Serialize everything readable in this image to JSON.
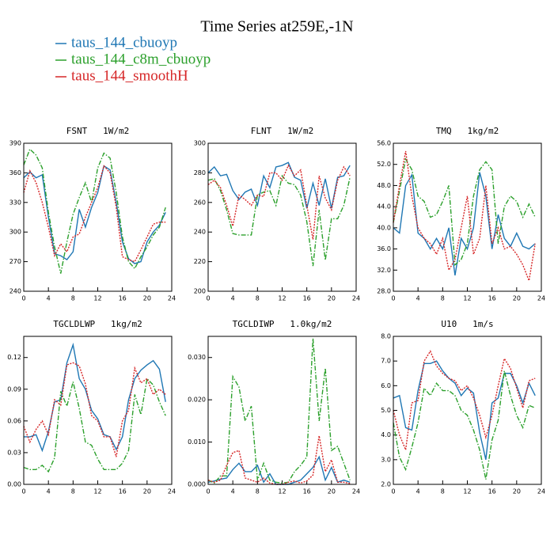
{
  "title": "Time Series at259E,-1N",
  "chart_data": [
    {
      "type": "line",
      "title": "FSNT   1W/m2",
      "x": [
        0,
        1,
        2,
        3,
        4,
        5,
        6,
        7,
        8,
        9,
        10,
        11,
        12,
        13,
        14,
        15,
        16,
        17,
        18,
        19,
        20,
        21,
        22,
        23
      ],
      "xlim": [
        0,
        24
      ],
      "xticks": [
        0,
        4,
        8,
        12,
        16,
        20,
        24
      ],
      "ylim": [
        240,
        390
      ],
      "yticks": [
        240,
        270,
        300,
        330,
        360,
        390
      ],
      "series": [
        {
          "name": "taus_144_cbuoyp",
          "color": "#1f77b4",
          "linestyle": "solid",
          "values": [
            355,
            361,
            355,
            358,
            315,
            278,
            276,
            272,
            280,
            323,
            305,
            325,
            340,
            367,
            363,
            330,
            290,
            273,
            268,
            270,
            290,
            300,
            307,
            320
          ]
        },
        {
          "name": "taus_144_c8m_cbuoyp",
          "color": "#2ca02c",
          "linestyle": "dashdot",
          "values": [
            368,
            384,
            378,
            365,
            320,
            285,
            258,
            290,
            318,
            335,
            350,
            330,
            365,
            380,
            375,
            340,
            295,
            270,
            263,
            275,
            285,
            297,
            305,
            325
          ]
        },
        {
          "name": "taus_144_smoothH",
          "color": "#d62728",
          "linestyle": "dotted",
          "values": [
            340,
            362,
            350,
            330,
            305,
            276,
            288,
            280,
            295,
            298,
            315,
            330,
            345,
            367,
            360,
            325,
            275,
            272,
            270,
            282,
            295,
            308,
            310,
            310
          ]
        }
      ]
    },
    {
      "type": "line",
      "title": "FLNT   1W/m2",
      "x": [
        0,
        1,
        2,
        3,
        4,
        5,
        6,
        7,
        8,
        9,
        10,
        11,
        12,
        13,
        14,
        15,
        16,
        17,
        18,
        19,
        20,
        21,
        22,
        23
      ],
      "xlim": [
        0,
        24
      ],
      "xticks": [
        0,
        4,
        8,
        12,
        16,
        20,
        24
      ],
      "ylim": [
        200,
        300
      ],
      "yticks": [
        200,
        220,
        240,
        260,
        280,
        300
      ],
      "series": [
        {
          "name": "taus_144_cbuoyp",
          "color": "#1f77b4",
          "linestyle": "solid",
          "values": [
            280,
            284,
            278,
            279,
            268,
            262,
            267,
            269,
            258,
            278,
            270,
            284,
            285,
            287,
            277,
            275,
            256,
            273,
            258,
            276,
            256,
            277,
            278,
            285
          ]
        },
        {
          "name": "taus_144_c8m_cbuoyp",
          "color": "#2ca02c",
          "linestyle": "dashdot",
          "values": [
            275,
            276,
            268,
            255,
            239,
            238,
            238,
            238,
            265,
            267,
            268,
            258,
            278,
            273,
            272,
            265,
            247,
            217,
            255,
            221,
            249,
            249,
            258,
            277
          ]
        },
        {
          "name": "taus_144_smoothH",
          "color": "#d62728",
          "linestyle": "dotted",
          "values": [
            272,
            275,
            270,
            258,
            244,
            265,
            262,
            258,
            265,
            264,
            280,
            280,
            275,
            285,
            278,
            282,
            258,
            235,
            278,
            263,
            255,
            275,
            284,
            278
          ]
        }
      ]
    },
    {
      "type": "line",
      "title": "TMQ   1kg/m2",
      "x": [
        0,
        1,
        2,
        3,
        4,
        5,
        6,
        7,
        8,
        9,
        10,
        11,
        12,
        13,
        14,
        15,
        16,
        17,
        18,
        19,
        20,
        21,
        22,
        23
      ],
      "xlim": [
        0,
        24
      ],
      "xticks": [
        0,
        4,
        8,
        12,
        16,
        20,
        24
      ],
      "ylim": [
        28,
        56
      ],
      "yticks": [
        {
          "value": 28,
          "label": "28.0"
        },
        {
          "value": 32,
          "label": "32.0"
        },
        {
          "value": 36,
          "label": "36.0"
        },
        {
          "value": 40,
          "label": "40.0"
        },
        {
          "value": 44,
          "label": "44.0"
        },
        {
          "value": 48,
          "label": "48.0"
        },
        {
          "value": 52,
          "label": "52.0"
        },
        {
          "value": 56,
          "label": "56.0"
        }
      ],
      "series": [
        {
          "name": "taus_144_cbuoyp",
          "color": "#1f77b4",
          "linestyle": "solid",
          "values": [
            40,
            39,
            48,
            50,
            39,
            38,
            36,
            38,
            36,
            40,
            31,
            38,
            36,
            40,
            50.5,
            46,
            36,
            42.5,
            38,
            36.5,
            39,
            36.5,
            36,
            37
          ]
        },
        {
          "name": "taus_144_c8m_cbuoyp",
          "color": "#2ca02c",
          "linestyle": "dashdot",
          "values": [
            41,
            47,
            53,
            51,
            46,
            45,
            42,
            42.5,
            45,
            48,
            33,
            34,
            37,
            46,
            51,
            52.5,
            51,
            37,
            44,
            46,
            45,
            42,
            44.5,
            42
          ]
        },
        {
          "name": "taus_144_smoothH",
          "color": "#d62728",
          "linestyle": "dotted",
          "values": [
            41,
            48,
            54.5,
            46,
            40,
            38,
            37,
            35,
            38,
            32,
            34,
            40,
            46,
            35,
            38,
            48,
            37,
            40,
            36,
            36.5,
            35,
            33,
            30,
            37
          ]
        }
      ]
    },
    {
      "type": "line",
      "title": "TGCLDLWP   1kg/m2",
      "x": [
        0,
        1,
        2,
        3,
        4,
        5,
        6,
        7,
        8,
        9,
        10,
        11,
        12,
        13,
        14,
        15,
        16,
        17,
        18,
        19,
        20,
        21,
        22,
        23
      ],
      "xlim": [
        0,
        24
      ],
      "xticks": [
        0,
        4,
        8,
        12,
        16,
        20,
        24
      ],
      "ylim": [
        0,
        0.14
      ],
      "yticks": [
        {
          "value": 0,
          "label": "0.00"
        },
        {
          "value": 0.03,
          "label": "0.03"
        },
        {
          "value": 0.06,
          "label": "0.06"
        },
        {
          "value": 0.09,
          "label": "0.09"
        },
        {
          "value": 0.12,
          "label": "0.12"
        }
      ],
      "series": [
        {
          "name": "taus_144_cbuoyp",
          "color": "#1f77b4",
          "linestyle": "solid",
          "values": [
            0.045,
            0.045,
            0.047,
            0.032,
            0.05,
            0.078,
            0.08,
            0.115,
            0.132,
            0.1,
            0.09,
            0.07,
            0.062,
            0.047,
            0.045,
            0.033,
            0.045,
            0.08,
            0.1,
            0.108,
            0.113,
            0.117,
            0.109,
            0.078
          ]
        },
        {
          "name": "taus_144_c8m_cbuoyp",
          "color": "#2ca02c",
          "linestyle": "dashdot",
          "values": [
            0.016,
            0.014,
            0.014,
            0.018,
            0.012,
            0.025,
            0.088,
            0.074,
            0.097,
            0.072,
            0.04,
            0.037,
            0.024,
            0.014,
            0.014,
            0.014,
            0.02,
            0.032,
            0.085,
            0.066,
            0.1,
            0.094,
            0.078,
            0.065
          ]
        },
        {
          "name": "taus_144_smoothH",
          "color": "#d62728",
          "linestyle": "dotted",
          "values": [
            0.055,
            0.04,
            0.052,
            0.06,
            0.047,
            0.08,
            0.075,
            0.113,
            0.115,
            0.112,
            0.095,
            0.065,
            0.06,
            0.045,
            0.045,
            0.026,
            0.06,
            0.07,
            0.11,
            0.096,
            0.1,
            0.085,
            0.09,
            0.085
          ]
        }
      ]
    },
    {
      "type": "line",
      "title": "TGCLDIWP   1.0kg/m2",
      "x": [
        0,
        1,
        2,
        3,
        4,
        5,
        6,
        7,
        8,
        9,
        10,
        11,
        12,
        13,
        14,
        15,
        16,
        17,
        18,
        19,
        20,
        21,
        22,
        23
      ],
      "xlim": [
        0,
        24
      ],
      "xticks": [
        0,
        4,
        8,
        12,
        16,
        20,
        24
      ],
      "ylim": [
        0,
        0.035
      ],
      "yticks": [
        {
          "value": 0,
          "label": "0.000"
        },
        {
          "value": 0.01,
          "label": "0.010"
        },
        {
          "value": 0.02,
          "label": "0.020"
        },
        {
          "value": 0.03,
          "label": "0.030"
        }
      ],
      "series": [
        {
          "name": "taus_144_cbuoyp",
          "color": "#1f77b4",
          "linestyle": "solid",
          "values": [
            0.0005,
            0.0008,
            0.0012,
            0.0015,
            0.0035,
            0.005,
            0.003,
            0.003,
            0.0045,
            0.0005,
            0.0025,
            0,
            0,
            0,
            0.0005,
            0.001,
            0.0025,
            0.004,
            0.0065,
            0.001,
            0.004,
            0.0005,
            0.001,
            0.0005
          ]
        },
        {
          "name": "taus_144_c8m_cbuoyp",
          "color": "#2ca02c",
          "linestyle": "dashdot",
          "values": [
            0.001,
            0.0003,
            0.002,
            0.002,
            0.0255,
            0.023,
            0.015,
            0.0185,
            0.001,
            0.005,
            0.001,
            0.0005,
            0.0003,
            0.0005,
            0.003,
            0.0045,
            0.0065,
            0.0345,
            0.015,
            0.0275,
            0.008,
            0.009,
            0.005,
            0.001
          ]
        },
        {
          "name": "taus_144_smoothH",
          "color": "#d62728",
          "linestyle": "dotted",
          "values": [
            0.001,
            0.0005,
            0.001,
            0.0045,
            0.0075,
            0.008,
            0.0015,
            0.001,
            0.0005,
            0.0015,
            0.0003,
            0,
            0,
            0.0005,
            0.0008,
            0.0003,
            0.0008,
            0.0022,
            0.0115,
            0.003,
            0.0058,
            0.0005,
            0.0005,
            0.0002
          ]
        }
      ]
    },
    {
      "type": "line",
      "title": "U10   1m/s",
      "x": [
        0,
        1,
        2,
        3,
        4,
        5,
        6,
        7,
        8,
        9,
        10,
        11,
        12,
        13,
        14,
        15,
        16,
        17,
        18,
        19,
        20,
        21,
        22,
        23
      ],
      "xlim": [
        0,
        24
      ],
      "xticks": [
        0,
        4,
        8,
        12,
        16,
        20,
        24
      ],
      "ylim": [
        2,
        8
      ],
      "yticks": [
        {
          "value": 2,
          "label": "2.0"
        },
        {
          "value": 3,
          "label": "3.0"
        },
        {
          "value": 4,
          "label": "4.0"
        },
        {
          "value": 5,
          "label": "5.0"
        },
        {
          "value": 6,
          "label": "6.0"
        },
        {
          "value": 7,
          "label": "7.0"
        },
        {
          "value": 8,
          "label": "8.0"
        }
      ],
      "series": [
        {
          "name": "taus_144_cbuoyp",
          "color": "#1f77b4",
          "linestyle": "solid",
          "values": [
            5.5,
            5.6,
            4.3,
            4.2,
            5.8,
            6.9,
            6.9,
            7.0,
            6.6,
            6.3,
            6.1,
            5.6,
            5.9,
            5.7,
            4.1,
            3.0,
            5.3,
            5.5,
            6.5,
            6.5,
            6.0,
            5.3,
            6.1,
            5.6
          ]
        },
        {
          "name": "taus_144_c8m_cbuoyp",
          "color": "#2ca02c",
          "linestyle": "dashdot",
          "values": [
            4.5,
            3.1,
            2.6,
            3.5,
            4.5,
            5.9,
            5.6,
            6.1,
            5.8,
            5.8,
            5.6,
            5.0,
            4.8,
            4.2,
            3.4,
            2.2,
            3.8,
            4.6,
            6.6,
            5.6,
            4.8,
            4.3,
            5.2,
            5.1
          ]
        },
        {
          "name": "taus_144_smoothH",
          "color": "#d62728",
          "linestyle": "dotted",
          "values": [
            5.0,
            4.0,
            3.4,
            5.3,
            5.4,
            7.0,
            7.4,
            6.8,
            6.5,
            6.3,
            6.2,
            5.8,
            6.0,
            5.5,
            4.8,
            3.9,
            4.8,
            6.0,
            7.1,
            6.7,
            5.9,
            5.1,
            6.2,
            6.3
          ]
        }
      ]
    }
  ]
}
